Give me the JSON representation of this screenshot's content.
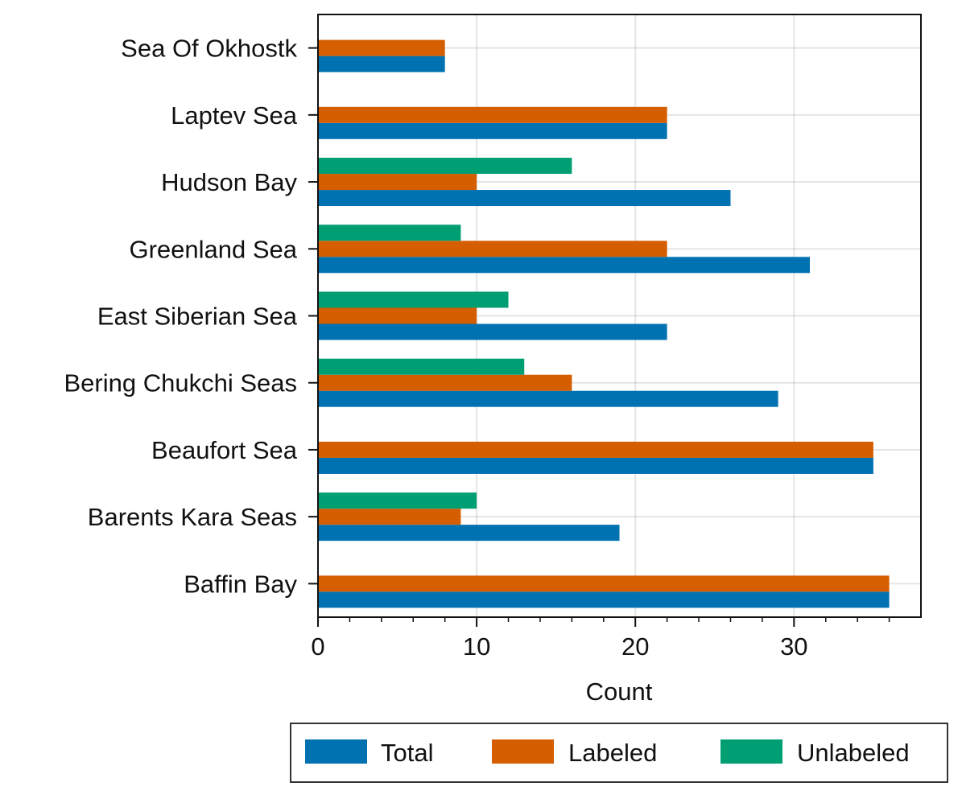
{
  "chart_data": {
    "type": "bar",
    "orientation": "horizontal",
    "categories": [
      "Baffin Bay",
      "Barents Kara Seas",
      "Beaufort Sea",
      "Bering Chukchi Seas",
      "East Siberian Sea",
      "Greenland Sea",
      "Hudson Bay",
      "Laptev Sea",
      "Sea Of Okhostk"
    ],
    "series": [
      {
        "name": "Total",
        "color": "#0072b2",
        "values": [
          36,
          19,
          35,
          29,
          22,
          31,
          26,
          22,
          8
        ]
      },
      {
        "name": "Labeled",
        "color": "#d55e00",
        "values": [
          36,
          9,
          35,
          16,
          10,
          22,
          10,
          22,
          8
        ]
      },
      {
        "name": "Unlabeled",
        "color": "#009e73",
        "values": [
          0,
          10,
          0,
          13,
          12,
          9,
          16,
          0,
          0
        ]
      }
    ],
    "title": "",
    "xlabel": "Count",
    "ylabel": "",
    "xlim": [
      0,
      38
    ],
    "xticks": [
      0,
      10,
      20,
      30
    ],
    "grid": true,
    "legend_position": "bottom-right, below axes"
  }
}
